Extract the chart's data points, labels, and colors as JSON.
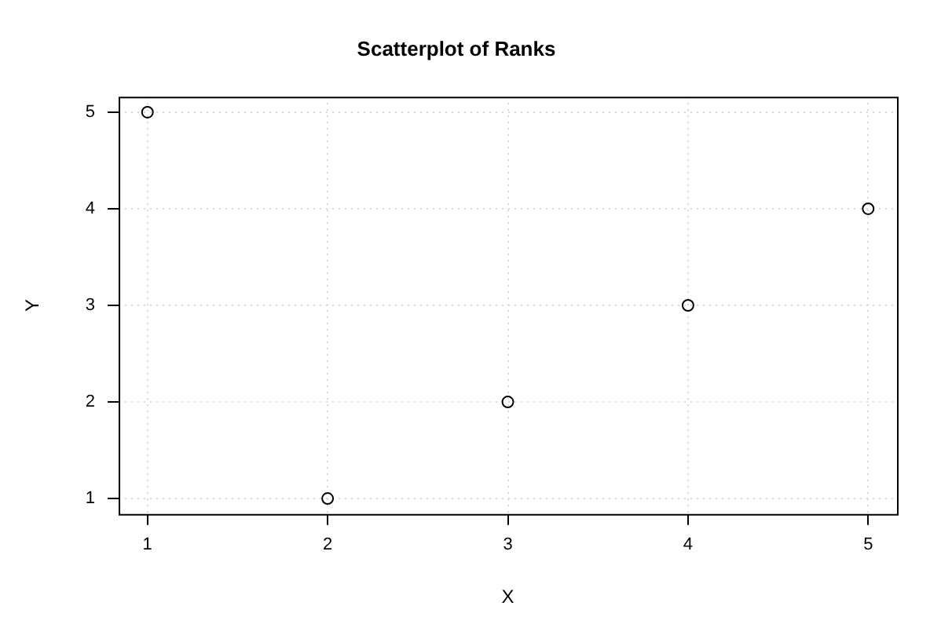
{
  "chart_data": {
    "type": "scatter",
    "title": "Scatterplot of Ranks",
    "xlabel": "X",
    "ylabel": "Y",
    "x": [
      1,
      2,
      3,
      4,
      5
    ],
    "series": [
      {
        "color": "#000000",
        "values": [
          5,
          1,
          2,
          3,
          4
        ]
      }
    ],
    "xlim": [
      0.84,
      5.16
    ],
    "ylim": [
      0.84,
      5.16
    ],
    "xticks": [
      1,
      2,
      3,
      4,
      5
    ],
    "yticks": [
      1,
      2,
      3,
      4,
      5
    ],
    "grid": true,
    "marker": "circle",
    "legend": false
  }
}
